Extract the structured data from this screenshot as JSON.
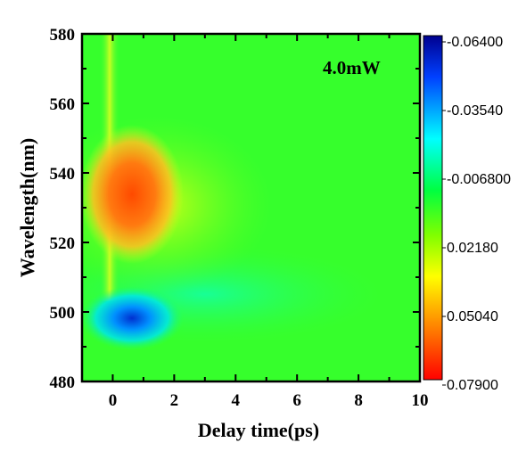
{
  "chart_data": {
    "type": "heatmap",
    "xlabel": "Delay time(ps)",
    "ylabel": "Wavelength(nm)",
    "annotation": "4.0mW",
    "xlim": [
      -1,
      10
    ],
    "ylim": [
      480,
      580
    ],
    "x_ticks": [
      "0",
      "2",
      "4",
      "6",
      "8",
      "10"
    ],
    "y_ticks": [
      "480",
      "500",
      "520",
      "540",
      "560",
      "580"
    ],
    "colorbar": {
      "labels": [
        "-0.06400",
        "-0.03540",
        "-0.006800",
        "0.02180",
        "0.05040",
        "0.07900"
      ],
      "min": -0.064,
      "max": 0.079,
      "colors_top_to_bottom": [
        "#00008f",
        "#0040ff",
        "#00ffff",
        "#00ff40",
        "#80ff00",
        "#ffff00",
        "#ff8000",
        "#ff0000"
      ]
    },
    "features": [
      {
        "region": "positive signal",
        "wavelength_range_nm": [
          515,
          560
        ],
        "peak_delay_ps": 0.3,
        "peak_value": 0.079
      },
      {
        "region": "negative signal",
        "wavelength_range_nm": [
          490,
          506
        ],
        "peak_delay_ps": 0.3,
        "peak_value": -0.064
      }
    ]
  }
}
